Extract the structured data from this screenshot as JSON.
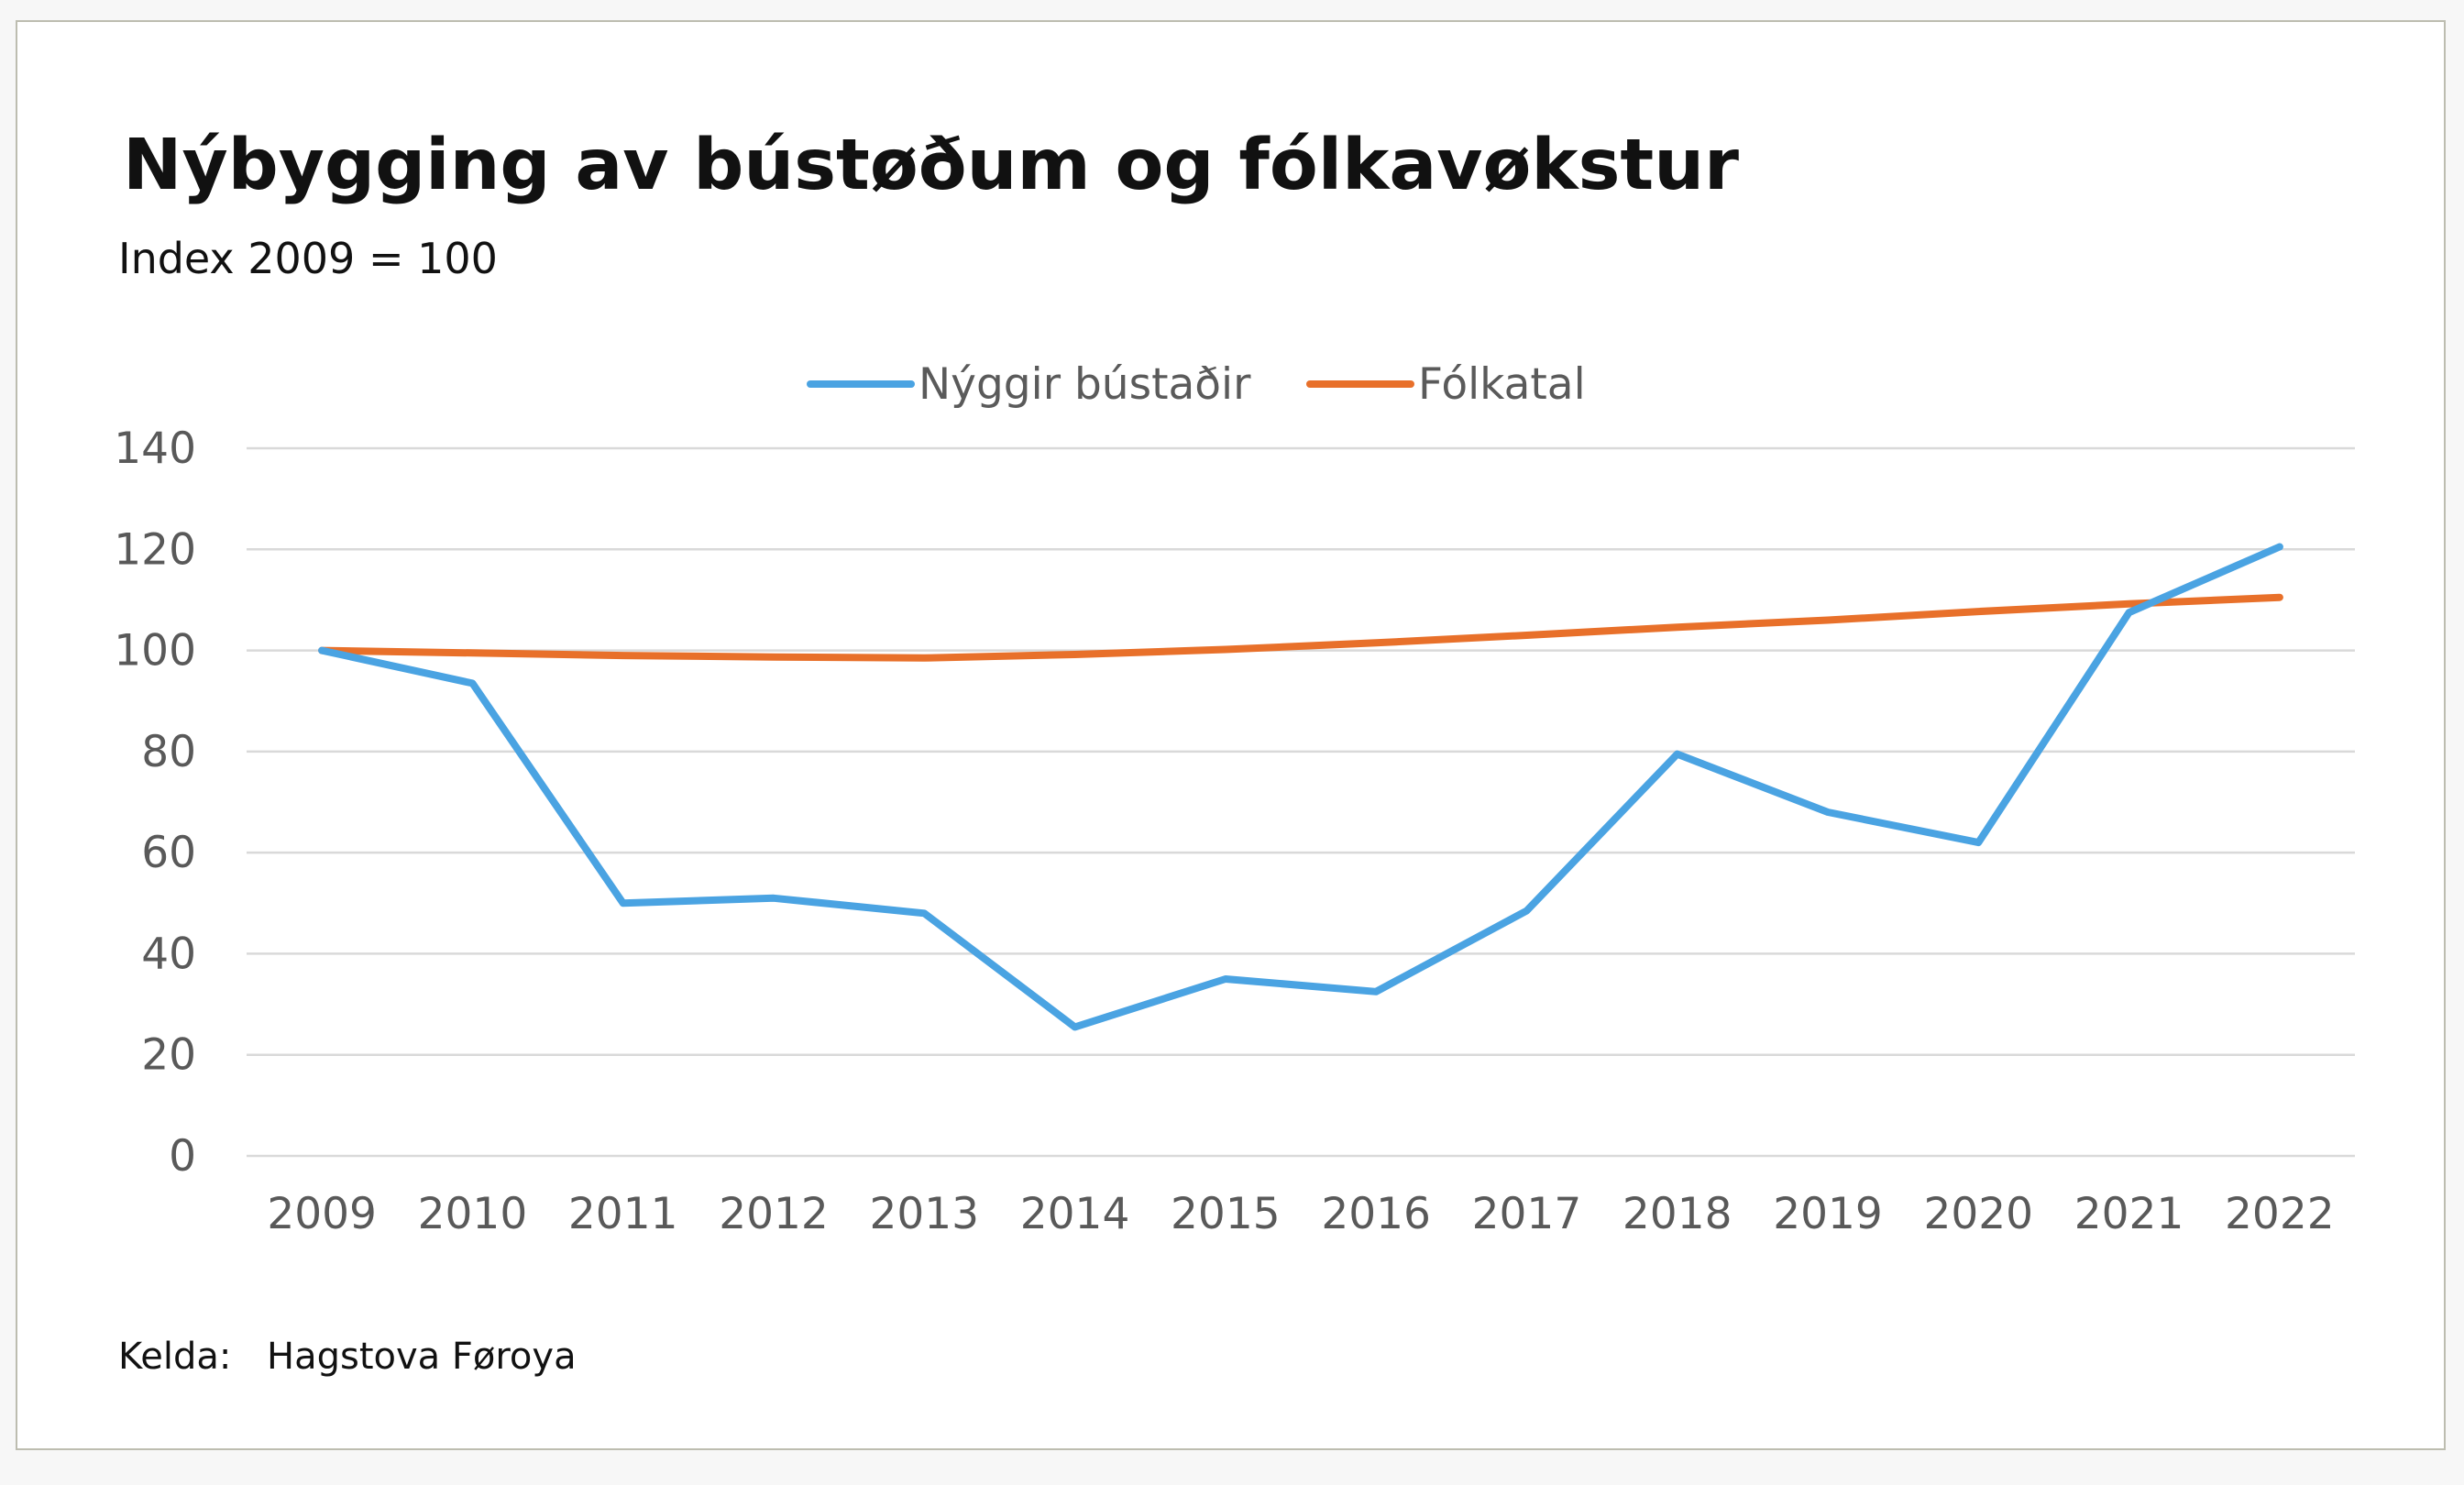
{
  "title": "Nýbygging av bústøðum og fólkavøkstur",
  "subtitle": "Index 2009 = 100",
  "source": {
    "label": "Kelda:",
    "value": "Hagstova Føroya"
  },
  "chart_data": {
    "type": "line",
    "title": "Nýbygging av bústøðum og fólkavøkstur",
    "subtitle": "Index 2009 = 100",
    "xlabel": "",
    "ylabel": "",
    "categories": [
      "2009",
      "2010",
      "2011",
      "2012",
      "2013",
      "2014",
      "2015",
      "2016",
      "2017",
      "2018",
      "2019",
      "2020",
      "2021",
      "2022"
    ],
    "ylim": [
      0,
      140
    ],
    "yticks": [
      0,
      20,
      40,
      60,
      80,
      100,
      120,
      140
    ],
    "grid": true,
    "legend_position": "top-center",
    "series": [
      {
        "name": "Nýggir bústaðir",
        "color": "#4aa3e2",
        "values": [
          100,
          93.5,
          50,
          51,
          48,
          25.5,
          35,
          32.5,
          48.5,
          79.5,
          68,
          62,
          107.5,
          120.5
        ]
      },
      {
        "name": "Fólkatal",
        "color": "#e8702a",
        "values": [
          100,
          99.5,
          99,
          98.7,
          98.5,
          99.2,
          100.2,
          101.5,
          103,
          104.6,
          106,
          107.7,
          109.2,
          110.5
        ]
      }
    ]
  }
}
